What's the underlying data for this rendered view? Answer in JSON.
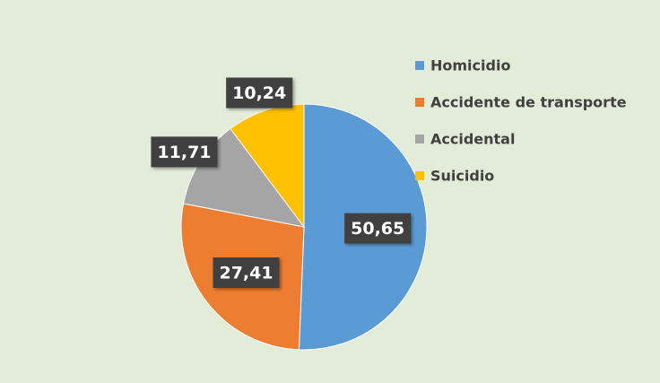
{
  "chart_data": {
    "type": "pie",
    "categories": [
      "Homicidio",
      "Accidente de transporte",
      "Accidental",
      "Suicidio"
    ],
    "values": [
      50.65,
      27.41,
      11.71,
      10.24
    ],
    "value_labels": [
      "50,65",
      "27,41",
      "11,71",
      "10,24"
    ],
    "colors": [
      "#5b9bd5",
      "#ed7d31",
      "#a5a5a5",
      "#ffc000"
    ],
    "legend": "right"
  }
}
